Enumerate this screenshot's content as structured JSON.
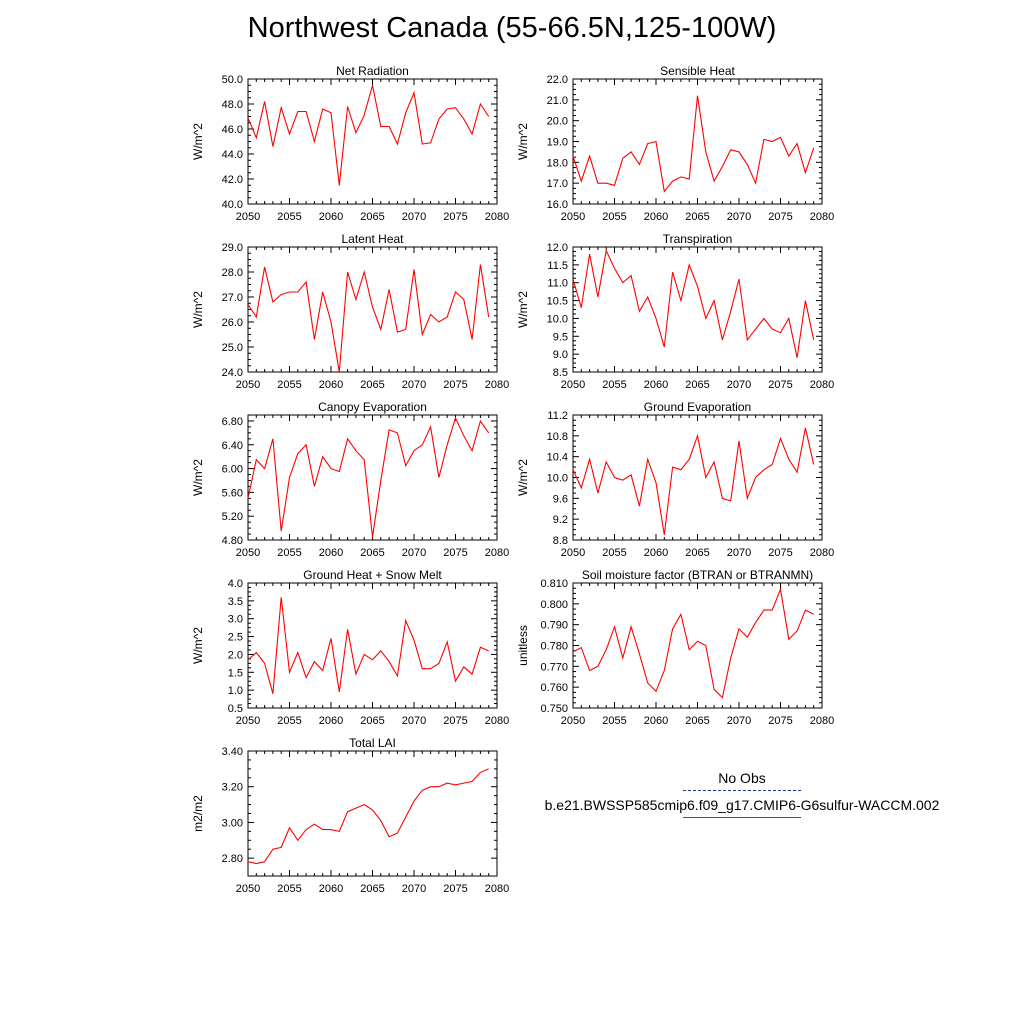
{
  "title": "Northwest Canada (55-66.5N,125-100W)",
  "colors": {
    "series": "#ff0000",
    "obs": "#1f3a93",
    "axis": "#000000"
  },
  "legend": {
    "obs_label": "No Obs",
    "model_label": "b.e21.BWSSP585cmip6.f09_g17.CMIP6-G6sulfur-WACCM.002"
  },
  "chart_data": [
    {
      "type": "line",
      "title": "Net Radiation",
      "ylabel": "W/m^2",
      "xlim": [
        2050,
        2080
      ],
      "ylim": [
        40,
        50
      ],
      "xticks": [
        "2050",
        "2055",
        "2060",
        "2065",
        "2070",
        "2075",
        "2080"
      ],
      "yticks": [
        "40.0",
        "42.0",
        "44.0",
        "46.0",
        "48.0",
        "50.0"
      ],
      "x": [
        2050,
        2051,
        2052,
        2053,
        2054,
        2055,
        2056,
        2057,
        2058,
        2059,
        2060,
        2061,
        2062,
        2063,
        2064,
        2065,
        2066,
        2067,
        2068,
        2069,
        2070,
        2071,
        2072,
        2073,
        2074,
        2075,
        2076,
        2077,
        2078,
        2079
      ],
      "values": [
        46.9,
        45.3,
        48.2,
        44.6,
        47.7,
        45.6,
        47.4,
        47.4,
        45.0,
        47.6,
        47.3,
        41.5,
        47.8,
        45.7,
        47.1,
        49.5,
        46.2,
        46.2,
        44.8,
        47.3,
        48.9,
        44.8,
        44.9,
        46.8,
        47.6,
        47.7,
        46.8,
        45.6,
        48.0,
        47.0
      ]
    },
    {
      "type": "line",
      "title": "Sensible Heat",
      "ylabel": "W/m^2",
      "xlim": [
        2050,
        2080
      ],
      "ylim": [
        16,
        22
      ],
      "xticks": [
        "2050",
        "2055",
        "2060",
        "2065",
        "2070",
        "2075",
        "2080"
      ],
      "yticks": [
        "16.0",
        "17.0",
        "18.0",
        "19.0",
        "20.0",
        "21.0",
        "22.0"
      ],
      "x": [
        2050,
        2051,
        2052,
        2053,
        2054,
        2055,
        2056,
        2057,
        2058,
        2059,
        2060,
        2061,
        2062,
        2063,
        2064,
        2065,
        2066,
        2067,
        2068,
        2069,
        2070,
        2071,
        2072,
        2073,
        2074,
        2075,
        2076,
        2077,
        2078,
        2079
      ],
      "values": [
        18.3,
        17.1,
        18.3,
        17.0,
        17.0,
        16.9,
        18.2,
        18.5,
        17.9,
        18.9,
        19.0,
        16.6,
        17.1,
        17.3,
        17.2,
        21.2,
        18.5,
        17.1,
        17.8,
        18.6,
        18.5,
        17.9,
        17.0,
        19.1,
        19.0,
        19.2,
        18.3,
        18.9,
        17.5,
        18.7
      ]
    },
    {
      "type": "line",
      "title": "Latent Heat",
      "ylabel": "W/m^2",
      "xlim": [
        2050,
        2080
      ],
      "ylim": [
        24,
        29
      ],
      "xticks": [
        "2050",
        "2055",
        "2060",
        "2065",
        "2070",
        "2075",
        "2080"
      ],
      "yticks": [
        "24.0",
        "25.0",
        "26.0",
        "27.0",
        "28.0",
        "29.0"
      ],
      "x": [
        2050,
        2051,
        2052,
        2053,
        2054,
        2055,
        2056,
        2057,
        2058,
        2059,
        2060,
        2061,
        2062,
        2063,
        2064,
        2065,
        2066,
        2067,
        2068,
        2069,
        2070,
        2071,
        2072,
        2073,
        2074,
        2075,
        2076,
        2077,
        2078,
        2079
      ],
      "values": [
        26.7,
        26.2,
        28.2,
        26.8,
        27.1,
        27.2,
        27.2,
        27.6,
        25.3,
        27.2,
        26.0,
        24.0,
        28.0,
        26.9,
        28.0,
        26.6,
        25.7,
        27.3,
        25.6,
        25.7,
        28.1,
        25.5,
        26.3,
        26.0,
        26.2,
        27.2,
        26.9,
        25.3,
        28.3,
        26.2
      ]
    },
    {
      "type": "line",
      "title": "Transpiration",
      "ylabel": "W/m^2",
      "xlim": [
        2050,
        2080
      ],
      "ylim": [
        8.5,
        12
      ],
      "xticks": [
        "2050",
        "2055",
        "2060",
        "2065",
        "2070",
        "2075",
        "2080"
      ],
      "yticks": [
        "8.5",
        "9.0",
        "9.5",
        "10.0",
        "10.5",
        "11.0",
        "11.5",
        "12.0"
      ],
      "x": [
        2050,
        2051,
        2052,
        2053,
        2054,
        2055,
        2056,
        2057,
        2058,
        2059,
        2060,
        2061,
        2062,
        2063,
        2064,
        2065,
        2066,
        2067,
        2068,
        2069,
        2070,
        2071,
        2072,
        2073,
        2074,
        2075,
        2076,
        2077,
        2078,
        2079
      ],
      "values": [
        11.1,
        10.3,
        11.8,
        10.6,
        11.9,
        11.4,
        11.0,
        11.2,
        10.2,
        10.6,
        10.0,
        9.2,
        11.3,
        10.5,
        11.5,
        10.9,
        10.0,
        10.5,
        9.4,
        10.2,
        11.1,
        9.4,
        9.7,
        10.0,
        9.7,
        9.6,
        10.0,
        8.9,
        10.5,
        9.4
      ]
    },
    {
      "type": "line",
      "title": "Canopy Evaporation",
      "ylabel": "W/m^2",
      "xlim": [
        2050,
        2080
      ],
      "ylim": [
        4.8,
        6.9
      ],
      "xticks": [
        "2050",
        "2055",
        "2060",
        "2065",
        "2070",
        "2075",
        "2080"
      ],
      "yticks": [
        "4.80",
        "5.20",
        "5.60",
        "6.00",
        "6.40",
        "6.80"
      ],
      "x": [
        2050,
        2051,
        2052,
        2053,
        2054,
        2055,
        2056,
        2057,
        2058,
        2059,
        2060,
        2061,
        2062,
        2063,
        2064,
        2065,
        2066,
        2067,
        2068,
        2069,
        2070,
        2071,
        2072,
        2073,
        2074,
        2075,
        2076,
        2077,
        2078,
        2079
      ],
      "values": [
        5.5,
        6.15,
        6.0,
        6.5,
        4.95,
        5.85,
        6.25,
        6.4,
        5.7,
        6.2,
        6.0,
        5.95,
        6.5,
        6.3,
        6.15,
        4.85,
        5.8,
        6.65,
        6.6,
        6.05,
        6.3,
        6.4,
        6.7,
        5.85,
        6.4,
        6.85,
        6.55,
        6.3,
        6.8,
        6.6
      ]
    },
    {
      "type": "line",
      "title": "Ground Evaporation",
      "ylabel": "W/m^2",
      "xlim": [
        2050,
        2080
      ],
      "ylim": [
        8.8,
        11.2
      ],
      "xticks": [
        "2050",
        "2055",
        "2060",
        "2065",
        "2070",
        "2075",
        "2080"
      ],
      "yticks": [
        "8.8",
        "9.2",
        "9.6",
        "10.0",
        "10.4",
        "10.8",
        "11.2"
      ],
      "x": [
        2050,
        2051,
        2052,
        2053,
        2054,
        2055,
        2056,
        2057,
        2058,
        2059,
        2060,
        2061,
        2062,
        2063,
        2064,
        2065,
        2066,
        2067,
        2068,
        2069,
        2070,
        2071,
        2072,
        2073,
        2074,
        2075,
        2076,
        2077,
        2078,
        2079
      ],
      "values": [
        10.15,
        9.8,
        10.35,
        9.7,
        10.3,
        10.0,
        9.95,
        10.05,
        9.45,
        10.35,
        9.9,
        8.9,
        10.2,
        10.15,
        10.35,
        10.8,
        10.0,
        10.3,
        9.6,
        9.55,
        10.7,
        9.6,
        10.0,
        10.15,
        10.25,
        10.75,
        10.35,
        10.1,
        10.95,
        10.25
      ]
    },
    {
      "type": "line",
      "title": "Ground Heat + Snow Melt",
      "ylabel": "W/m^2",
      "xlim": [
        2050,
        2080
      ],
      "ylim": [
        0.5,
        4.0
      ],
      "xticks": [
        "2050",
        "2055",
        "2060",
        "2065",
        "2070",
        "2075",
        "2080"
      ],
      "yticks": [
        "0.5",
        "1.0",
        "1.5",
        "2.0",
        "2.5",
        "3.0",
        "3.5",
        "4.0"
      ],
      "x": [
        2050,
        2051,
        2052,
        2053,
        2054,
        2055,
        2056,
        2057,
        2058,
        2059,
        2060,
        2061,
        2062,
        2063,
        2064,
        2065,
        2066,
        2067,
        2068,
        2069,
        2070,
        2071,
        2072,
        2073,
        2074,
        2075,
        2076,
        2077,
        2078,
        2079
      ],
      "values": [
        1.85,
        2.05,
        1.75,
        0.9,
        3.6,
        1.5,
        2.05,
        1.35,
        1.8,
        1.55,
        2.45,
        0.95,
        2.7,
        1.45,
        2.0,
        1.85,
        2.1,
        1.8,
        1.4,
        2.95,
        2.4,
        1.6,
        1.6,
        1.75,
        2.35,
        1.25,
        1.65,
        1.45,
        2.2,
        2.1
      ]
    },
    {
      "type": "line",
      "title": "Soil moisture factor (BTRAN or BTRANMN)",
      "ylabel": "unitless",
      "xlim": [
        2050,
        2080
      ],
      "ylim": [
        0.75,
        0.81
      ],
      "xticks": [
        "2050",
        "2055",
        "2060",
        "2065",
        "2070",
        "2075",
        "2080"
      ],
      "yticks": [
        "0.750",
        "0.760",
        "0.770",
        "0.780",
        "0.790",
        "0.800",
        "0.810"
      ],
      "x": [
        2050,
        2051,
        2052,
        2053,
        2054,
        2055,
        2056,
        2057,
        2058,
        2059,
        2060,
        2061,
        2062,
        2063,
        2064,
        2065,
        2066,
        2067,
        2068,
        2069,
        2070,
        2071,
        2072,
        2073,
        2074,
        2075,
        2076,
        2077,
        2078,
        2079
      ],
      "values": [
        0.777,
        0.779,
        0.768,
        0.77,
        0.778,
        0.789,
        0.774,
        0.789,
        0.776,
        0.762,
        0.758,
        0.768,
        0.788,
        0.795,
        0.778,
        0.782,
        0.78,
        0.759,
        0.755,
        0.774,
        0.788,
        0.784,
        0.791,
        0.797,
        0.797,
        0.807,
        0.783,
        0.787,
        0.797,
        0.795
      ]
    },
    {
      "type": "line",
      "title": "Total LAI",
      "ylabel": "m2/m2",
      "xlim": [
        2050,
        2080
      ],
      "ylim": [
        2.7,
        3.4
      ],
      "xticks": [
        "2050",
        "2055",
        "2060",
        "2065",
        "2070",
        "2075",
        "2080"
      ],
      "yticks": [
        "2.80",
        "3.00",
        "3.20",
        "3.40"
      ],
      "x": [
        2050,
        2051,
        2052,
        2053,
        2054,
        2055,
        2056,
        2057,
        2058,
        2059,
        2060,
        2061,
        2062,
        2063,
        2064,
        2065,
        2066,
        2067,
        2068,
        2069,
        2070,
        2071,
        2072,
        2073,
        2074,
        2075,
        2076,
        2077,
        2078,
        2079
      ],
      "values": [
        2.78,
        2.77,
        2.78,
        2.85,
        2.86,
        2.97,
        2.9,
        2.96,
        2.99,
        2.96,
        2.96,
        2.95,
        3.06,
        3.08,
        3.1,
        3.07,
        3.01,
        2.92,
        2.94,
        3.03,
        3.12,
        3.18,
        3.2,
        3.2,
        3.22,
        3.21,
        3.22,
        3.23,
        3.28,
        3.3
      ]
    }
  ]
}
